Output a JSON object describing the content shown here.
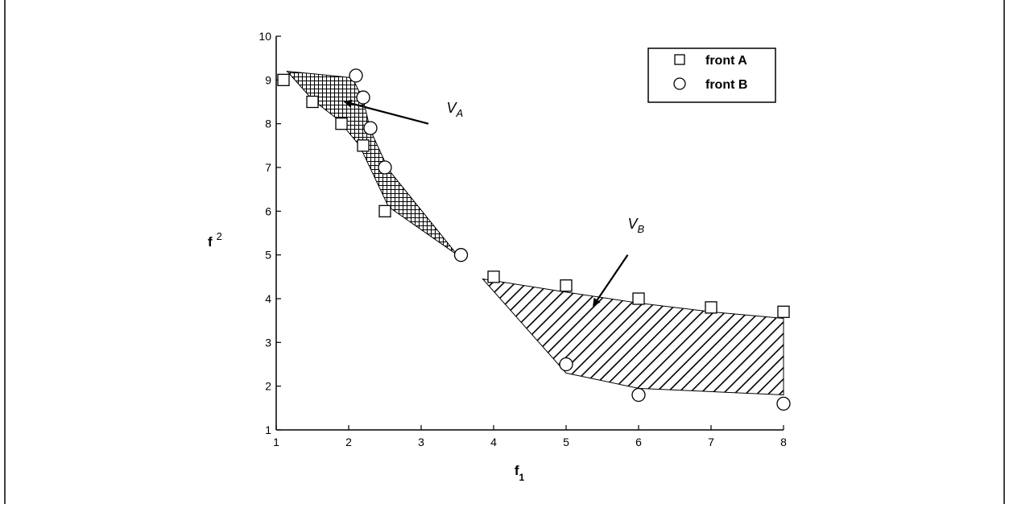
{
  "chart_data": {
    "type": "scatter",
    "xlabel": "f",
    "xlabel_sub": "1",
    "ylabel": "f",
    "ylabel_sup": "2",
    "xlim": [
      1,
      8
    ],
    "ylim": [
      1,
      10
    ],
    "x_ticks": [
      1,
      2,
      3,
      4,
      5,
      6,
      7,
      8
    ],
    "y_ticks": [
      1,
      2,
      3,
      4,
      5,
      6,
      7,
      8,
      9,
      10
    ],
    "grid": false,
    "legend_position": "top-right",
    "series": [
      {
        "name": "front A",
        "marker": "square",
        "points": [
          [
            1.1,
            9.0
          ],
          [
            1.5,
            8.5
          ],
          [
            1.9,
            8.0
          ],
          [
            2.2,
            7.5
          ],
          [
            2.5,
            6.0
          ],
          [
            4.0,
            4.5
          ],
          [
            5.0,
            4.3
          ],
          [
            6.0,
            4.0
          ],
          [
            7.0,
            3.8
          ],
          [
            8.0,
            3.7
          ]
        ]
      },
      {
        "name": "front B",
        "marker": "circle",
        "points": [
          [
            2.1,
            9.1
          ],
          [
            2.2,
            8.6
          ],
          [
            2.3,
            7.9
          ],
          [
            2.5,
            7.0
          ],
          [
            3.55,
            5.0
          ],
          [
            5.0,
            2.5
          ],
          [
            6.0,
            1.8
          ],
          [
            8.0,
            1.6
          ]
        ]
      }
    ],
    "regions": [
      {
        "name": "V_A",
        "pattern": "crosshatch",
        "polygon": [
          [
            1.15,
            9.2
          ],
          [
            2.05,
            9.05
          ],
          [
            2.2,
            8.55
          ],
          [
            2.3,
            7.85
          ],
          [
            2.55,
            6.95
          ],
          [
            3.5,
            5.0
          ],
          [
            2.55,
            6.1
          ],
          [
            2.15,
            7.5
          ],
          [
            1.85,
            8.1
          ],
          [
            1.5,
            8.55
          ]
        ]
      },
      {
        "name": "V_B",
        "pattern": "diagonal",
        "polygon": [
          [
            3.85,
            4.45
          ],
          [
            5.0,
            4.15
          ],
          [
            6.0,
            3.9
          ],
          [
            7.0,
            3.7
          ],
          [
            8.0,
            3.55
          ],
          [
            8.0,
            1.8
          ],
          [
            6.0,
            1.95
          ],
          [
            5.0,
            2.3
          ]
        ]
      }
    ],
    "annotations": [
      {
        "label": "V",
        "sub": "A",
        "text_at": [
          3.35,
          8.25
        ],
        "arrow_from": [
          3.1,
          8.0
        ],
        "arrow_to": [
          1.95,
          8.5
        ]
      },
      {
        "label": "V",
        "sub": "B",
        "text_at": [
          5.85,
          5.6
        ],
        "arrow_from": [
          5.85,
          5.0
        ],
        "arrow_to": [
          5.38,
          3.85
        ]
      }
    ]
  }
}
